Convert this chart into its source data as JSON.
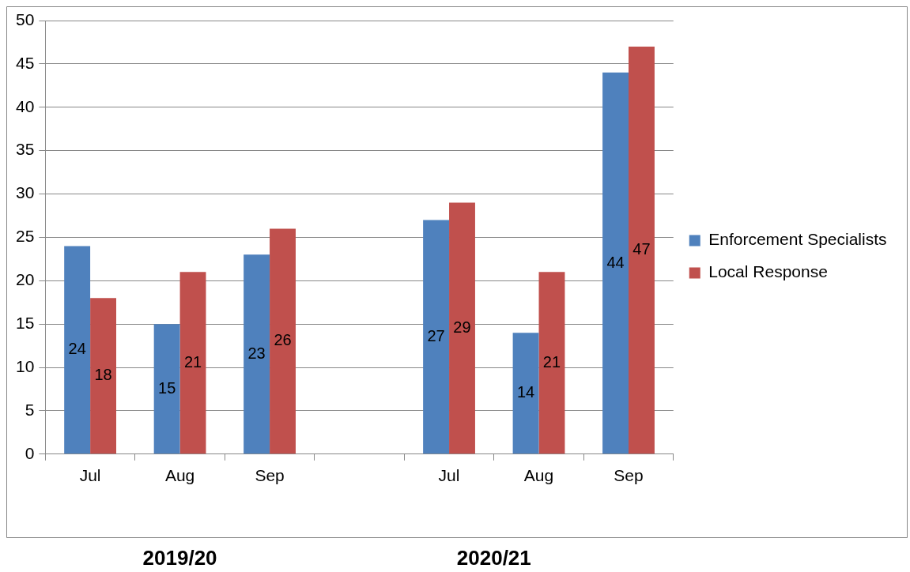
{
  "chart_data": {
    "type": "bar",
    "categories": [
      "Jul",
      "Aug",
      "Sep",
      null,
      "Jul",
      "Aug",
      "Sep"
    ],
    "series": [
      {
        "name": "Enforcement Specialists",
        "color": "#4f81bd",
        "values": [
          24,
          15,
          23,
          null,
          27,
          14,
          44
        ]
      },
      {
        "name": "Local Response",
        "color": "#c0504d",
        "values": [
          18,
          21,
          26,
          null,
          29,
          21,
          47
        ]
      }
    ],
    "ylim": [
      0,
      50
    ],
    "yticks": [
      0,
      5,
      10,
      15,
      20,
      25,
      30,
      35,
      40,
      45,
      50
    ],
    "grid": "y",
    "legend": "right",
    "data_labels": true,
    "annotations": [
      "2019/20",
      "2020/21"
    ]
  }
}
